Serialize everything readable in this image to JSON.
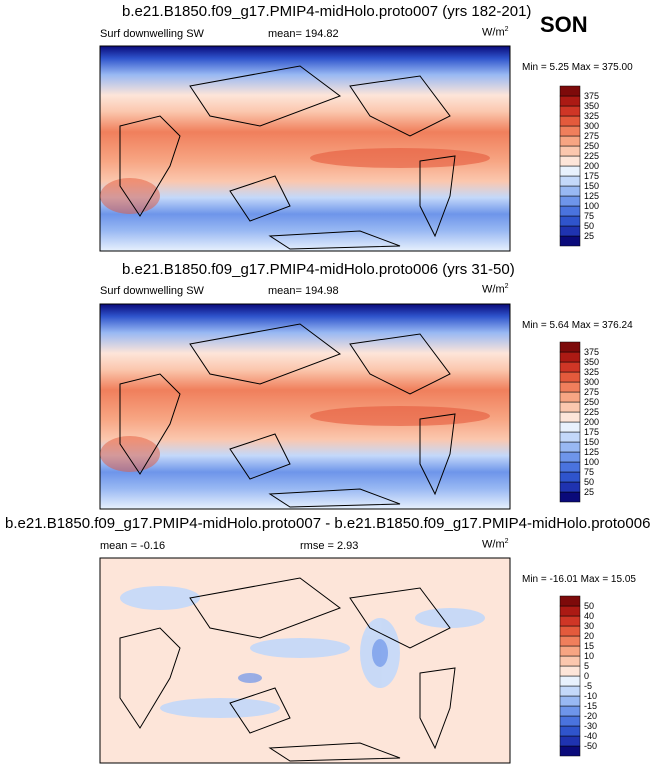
{
  "season": "SON",
  "panels": [
    {
      "title": "b.e21.B1850.f09_g17.PMIP4-midHolo.proto007 (yrs 182-201)",
      "variable": "Surf downwelling SW",
      "mean_label": "mean= 194.82",
      "unit_base": "W/m",
      "unit_exp": "2",
      "minmax": "Min =  5.25 Max = 375.00"
    },
    {
      "title": "b.e21.B1850.f09_g17.PMIP4-midHolo.proto006 (yrs 31-50)",
      "variable": "Surf downwelling SW",
      "mean_label": "mean= 194.98",
      "unit_base": "W/m",
      "unit_exp": "2",
      "minmax": "Min =  5.64 Max = 376.24"
    },
    {
      "title": "b.e21.B1850.f09_g17.PMIP4-midHolo.proto007 - b.e21.B1850.f09_g17.PMIP4-midHolo.proto006",
      "mean_label": "mean =  -0.16",
      "rmse_label": "rmse =  2.93",
      "unit_base": "W/m",
      "unit_exp": "2",
      "minmax": "Min = -16.01 Max = 15.05"
    }
  ],
  "chart_data": [
    {
      "type": "heatmap",
      "title": "b.e21.B1850.f09_g17.PMIP4-midHolo.proto007 (yrs 182-201)",
      "variable": "Surf downwelling SW",
      "units": "W/m2",
      "mean": 194.82,
      "min": 5.25,
      "max": 375.0,
      "colorbar_levels": [
        25,
        50,
        75,
        100,
        125,
        150,
        175,
        200,
        225,
        250,
        275,
        300,
        325,
        350,
        375
      ],
      "colorbar_colors": [
        "#0a0a7a",
        "#1f33b0",
        "#2f54cc",
        "#4a73de",
        "#6e95ea",
        "#98b8f3",
        "#c3d8fa",
        "#e8f1fd",
        "#fde5d9",
        "#fbc7ae",
        "#f7a583",
        "#f07f5c",
        "#e45a3c",
        "#cf3626",
        "#ac1a14",
        "#7d0a0a"
      ],
      "grid": false
    },
    {
      "type": "heatmap",
      "title": "b.e21.B1850.f09_g17.PMIP4-midHolo.proto006 (yrs 31-50)",
      "variable": "Surf downwelling SW",
      "units": "W/m2",
      "mean": 194.98,
      "min": 5.64,
      "max": 376.24,
      "colorbar_levels": [
        25,
        50,
        75,
        100,
        125,
        150,
        175,
        200,
        225,
        250,
        275,
        300,
        325,
        350,
        375
      ],
      "colorbar_colors": [
        "#0a0a7a",
        "#1f33b0",
        "#2f54cc",
        "#4a73de",
        "#6e95ea",
        "#98b8f3",
        "#c3d8fa",
        "#e8f1fd",
        "#fde5d9",
        "#fbc7ae",
        "#f7a583",
        "#f07f5c",
        "#e45a3c",
        "#cf3626",
        "#ac1a14",
        "#7d0a0a"
      ],
      "grid": false
    },
    {
      "type": "heatmap",
      "title": "b.e21.B1850.f09_g17.PMIP4-midHolo.proto007 - b.e21.B1850.f09_g17.PMIP4-midHolo.proto006",
      "units": "W/m2",
      "mean": -0.16,
      "rmse": 2.93,
      "min": -16.01,
      "max": 15.05,
      "colorbar_levels": [
        -50,
        -40,
        -30,
        -20,
        -15,
        -10,
        -5,
        0,
        5,
        10,
        15,
        20,
        30,
        40,
        50
      ],
      "colorbar_colors": [
        "#0a0a7a",
        "#1f33b0",
        "#2f54cc",
        "#4a73de",
        "#6e95ea",
        "#98b8f3",
        "#c3d8fa",
        "#e8f1fd",
        "#fde5d9",
        "#fbc7ae",
        "#f7a583",
        "#f07f5c",
        "#e45a3c",
        "#cf3626",
        "#ac1a14",
        "#7d0a0a"
      ],
      "grid": false
    }
  ]
}
